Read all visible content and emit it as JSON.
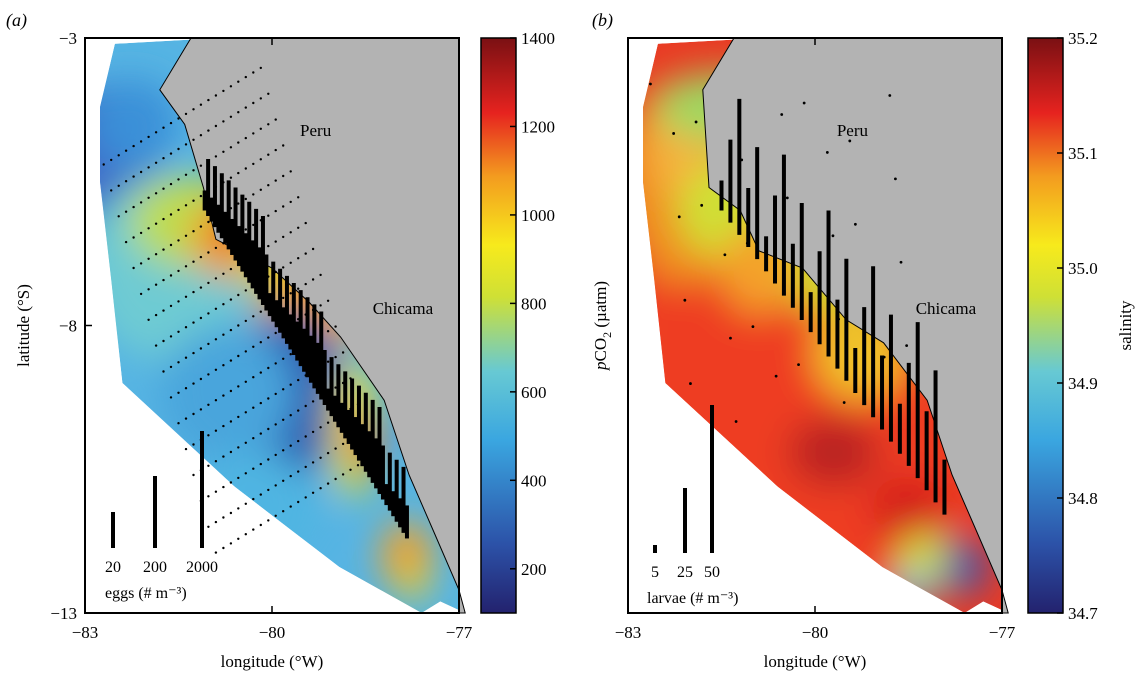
{
  "chart_data": [
    {
      "panel_label": "(a)",
      "type": "heatmap",
      "xlabel": "longitude (°W)",
      "ylabel": "latitude (°S)",
      "xlim": [
        -83,
        -77
      ],
      "ylim": [
        -13,
        -3
      ],
      "xticks": [
        {
          "v": -83,
          "label": "−83"
        },
        {
          "v": -80,
          "label": "−80"
        },
        {
          "v": -77,
          "label": "−77"
        }
      ],
      "yticks": [
        {
          "v": -3,
          "label": "−3"
        },
        {
          "v": -8,
          "label": "−8"
        },
        {
          "v": -13,
          "label": "−13"
        }
      ],
      "annotations": [
        {
          "text": "Peru",
          "lon": -79.3,
          "lat": -4.7
        },
        {
          "text": "Chicama",
          "lon": -77.9,
          "lat": -7.8
        }
      ],
      "colorbar": {
        "range": [
          100,
          1400
        ],
        "ticks": [
          {
            "v": 200,
            "label": "200"
          },
          {
            "v": 400,
            "label": "400"
          },
          {
            "v": 600,
            "label": "600"
          },
          {
            "v": 800,
            "label": "800"
          },
          {
            "v": 1000,
            "label": "1000"
          },
          {
            "v": 1200,
            "label": "1200"
          },
          {
            "v": 1400,
            "label": "1400"
          }
        ],
        "label": "pCO2 (µatm)"
      },
      "bar_legend": {
        "title": "eggs (# m⁻³)",
        "entries": [
          {
            "label": "20",
            "value": 20
          },
          {
            "label": "200",
            "value": 200
          },
          {
            "label": "2000",
            "value": 2000
          }
        ]
      },
      "coastline": [
        [
          -81.3,
          -3
        ],
        [
          -81.8,
          -3.9
        ],
        [
          -81.4,
          -4.5
        ],
        [
          -81.1,
          -5.6
        ],
        [
          -80.9,
          -6.5
        ],
        [
          -80.0,
          -7.0
        ],
        [
          -79.4,
          -7.6
        ],
        [
          -78.9,
          -8.2
        ],
        [
          -78.2,
          -9.3
        ],
        [
          -77.8,
          -10.6
        ],
        [
          -77.4,
          -11.6
        ],
        [
          -77.0,
          -12.6
        ],
        [
          -76.9,
          -13
        ]
      ]
    },
    {
      "panel_label": "(b)",
      "type": "heatmap",
      "xlabel": "longitude (°W)",
      "ylabel": "",
      "xlim": [
        -83,
        -77
      ],
      "ylim": [
        -13,
        -3
      ],
      "xticks": [
        {
          "v": -83,
          "label": "−83"
        },
        {
          "v": -80,
          "label": "−80"
        },
        {
          "v": -77,
          "label": "−77"
        }
      ],
      "yticks": [],
      "annotations": [
        {
          "text": "Peru",
          "lon": -79.4,
          "lat": -4.7
        },
        {
          "text": "Chicama",
          "lon": -77.9,
          "lat": -7.8
        }
      ],
      "colorbar": {
        "range": [
          34.7,
          35.2
        ],
        "ticks": [
          {
            "v": 34.7,
            "label": "34.7"
          },
          {
            "v": 34.8,
            "label": "34.8"
          },
          {
            "v": 34.9,
            "label": "34.9"
          },
          {
            "v": 35.0,
            "label": "35.0"
          },
          {
            "v": 35.1,
            "label": "35.1"
          },
          {
            "v": 35.2,
            "label": "35.2"
          }
        ],
        "label": "salinity"
      },
      "bar_legend": {
        "title": "larvae (# m⁻³)",
        "entries": [
          {
            "label": "5",
            "value": 5
          },
          {
            "label": "25",
            "value": 25
          },
          {
            "label": "50",
            "value": 50
          }
        ]
      },
      "coastline": [
        [
          -81.3,
          -3
        ],
        [
          -81.8,
          -3.9
        ],
        [
          -81.7,
          -5.6
        ],
        [
          -81.2,
          -6.0
        ],
        [
          -80.9,
          -6.7
        ],
        [
          -80.2,
          -7.0
        ],
        [
          -79.5,
          -7.9
        ],
        [
          -78.9,
          -8.3
        ],
        [
          -78.2,
          -9.3
        ],
        [
          -77.8,
          -10.6
        ],
        [
          -77.4,
          -11.6
        ],
        [
          -77.0,
          -12.6
        ],
        [
          -76.9,
          -13
        ]
      ]
    }
  ]
}
